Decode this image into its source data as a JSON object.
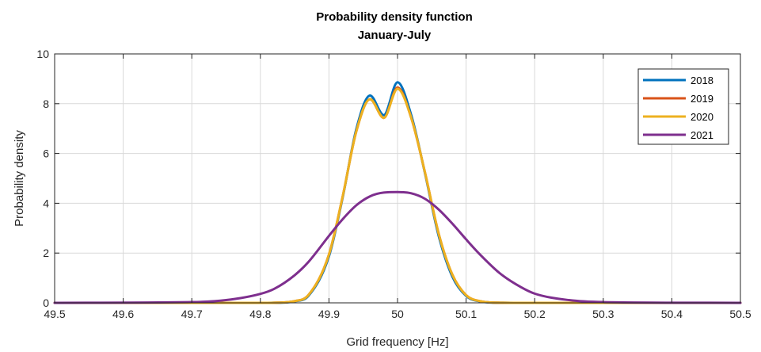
{
  "chart_data": {
    "type": "line",
    "title": "Probability density function",
    "subtitle": "January-July",
    "xlabel": "Grid frequency [Hz]",
    "ylabel": "Probability density",
    "xlim": [
      49.5,
      50.5
    ],
    "ylim": [
      0,
      10
    ],
    "xticks": [
      "49.5",
      "49.6",
      "49.7",
      "49.8",
      "49.9",
      "50",
      "50.1",
      "50.2",
      "50.3",
      "50.4",
      "50.5"
    ],
    "yticks": [
      "0",
      "2",
      "4",
      "6",
      "8",
      "10"
    ],
    "grid": true,
    "legend_position": "top-right",
    "x": [
      49.5,
      49.7,
      49.75,
      49.8,
      49.82,
      49.85,
      49.87,
      49.9,
      49.92,
      49.94,
      49.96,
      49.98,
      50.0,
      50.02,
      50.04,
      50.06,
      50.08,
      50.1,
      50.12,
      50.15,
      50.18,
      50.2,
      50.25,
      50.3,
      50.5
    ],
    "series": [
      {
        "name": "2018",
        "color": "#0072BD",
        "values": [
          0,
          0,
          0,
          0,
          0.003,
          0.06,
          0.28,
          1.87,
          4.23,
          6.99,
          8.33,
          7.54,
          8.86,
          7.54,
          5.21,
          2.69,
          1.05,
          0.28,
          0.06,
          0.003,
          0,
          0,
          0,
          0,
          0
        ]
      },
      {
        "name": "2019",
        "color": "#D95319",
        "values": [
          0,
          0,
          0,
          0,
          0.005,
          0.07,
          0.31,
          1.94,
          4.27,
          6.9,
          8.18,
          7.43,
          8.65,
          7.43,
          5.24,
          2.78,
          1.13,
          0.31,
          0.07,
          0.005,
          0,
          0,
          0,
          0,
          0
        ]
      },
      {
        "name": "2020",
        "color": "#EDB120",
        "values": [
          0,
          0,
          0,
          0,
          0.005,
          0.07,
          0.31,
          1.94,
          4.27,
          6.9,
          8.18,
          7.43,
          8.6,
          7.43,
          5.24,
          2.78,
          1.13,
          0.31,
          0.07,
          0.005,
          0,
          0,
          0,
          0,
          0
        ]
      },
      {
        "name": "2021",
        "color": "#7E2F8E",
        "values": [
          0,
          0.03,
          0.11,
          0.36,
          0.56,
          1.11,
          1.64,
          2.69,
          3.36,
          3.92,
          4.28,
          4.43,
          4.45,
          4.4,
          4.18,
          3.75,
          3.18,
          2.55,
          1.95,
          1.17,
          0.63,
          0.37,
          0.11,
          0.03,
          0
        ]
      }
    ]
  }
}
